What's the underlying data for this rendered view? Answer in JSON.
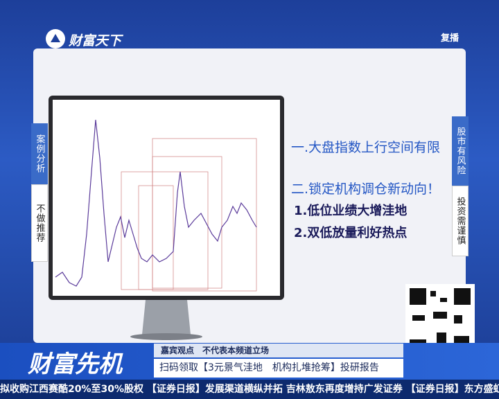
{
  "header": {
    "logo": "财富天下",
    "badge": "复播"
  },
  "side_left": {
    "top": "案例分析",
    "bottom": "不做推荐"
  },
  "side_right": {
    "top": "股市有风险",
    "bottom": "投资需谨慎"
  },
  "points": {
    "heading1": "一.大盘指数上行空间有限",
    "heading2": "二.锁定机构调仓新动向！",
    "items": [
      "1.低位业绩大增洼地",
      "2.双低放量利好热点"
    ]
  },
  "lower_third": {
    "program": "财富先机",
    "disclaimer": "嘉宾观点　不代表本频道立场",
    "promo": "扫码领取【3元景气洼地　机构扎堆抢筹】投研报告"
  },
  "ticker": "拟收购江西赛酷20%至30%股权 【证券日报】发展渠道横纵并拓 吉林敖东再度增持广发证券 【证券日报】东方盛虹控股子公司"
}
